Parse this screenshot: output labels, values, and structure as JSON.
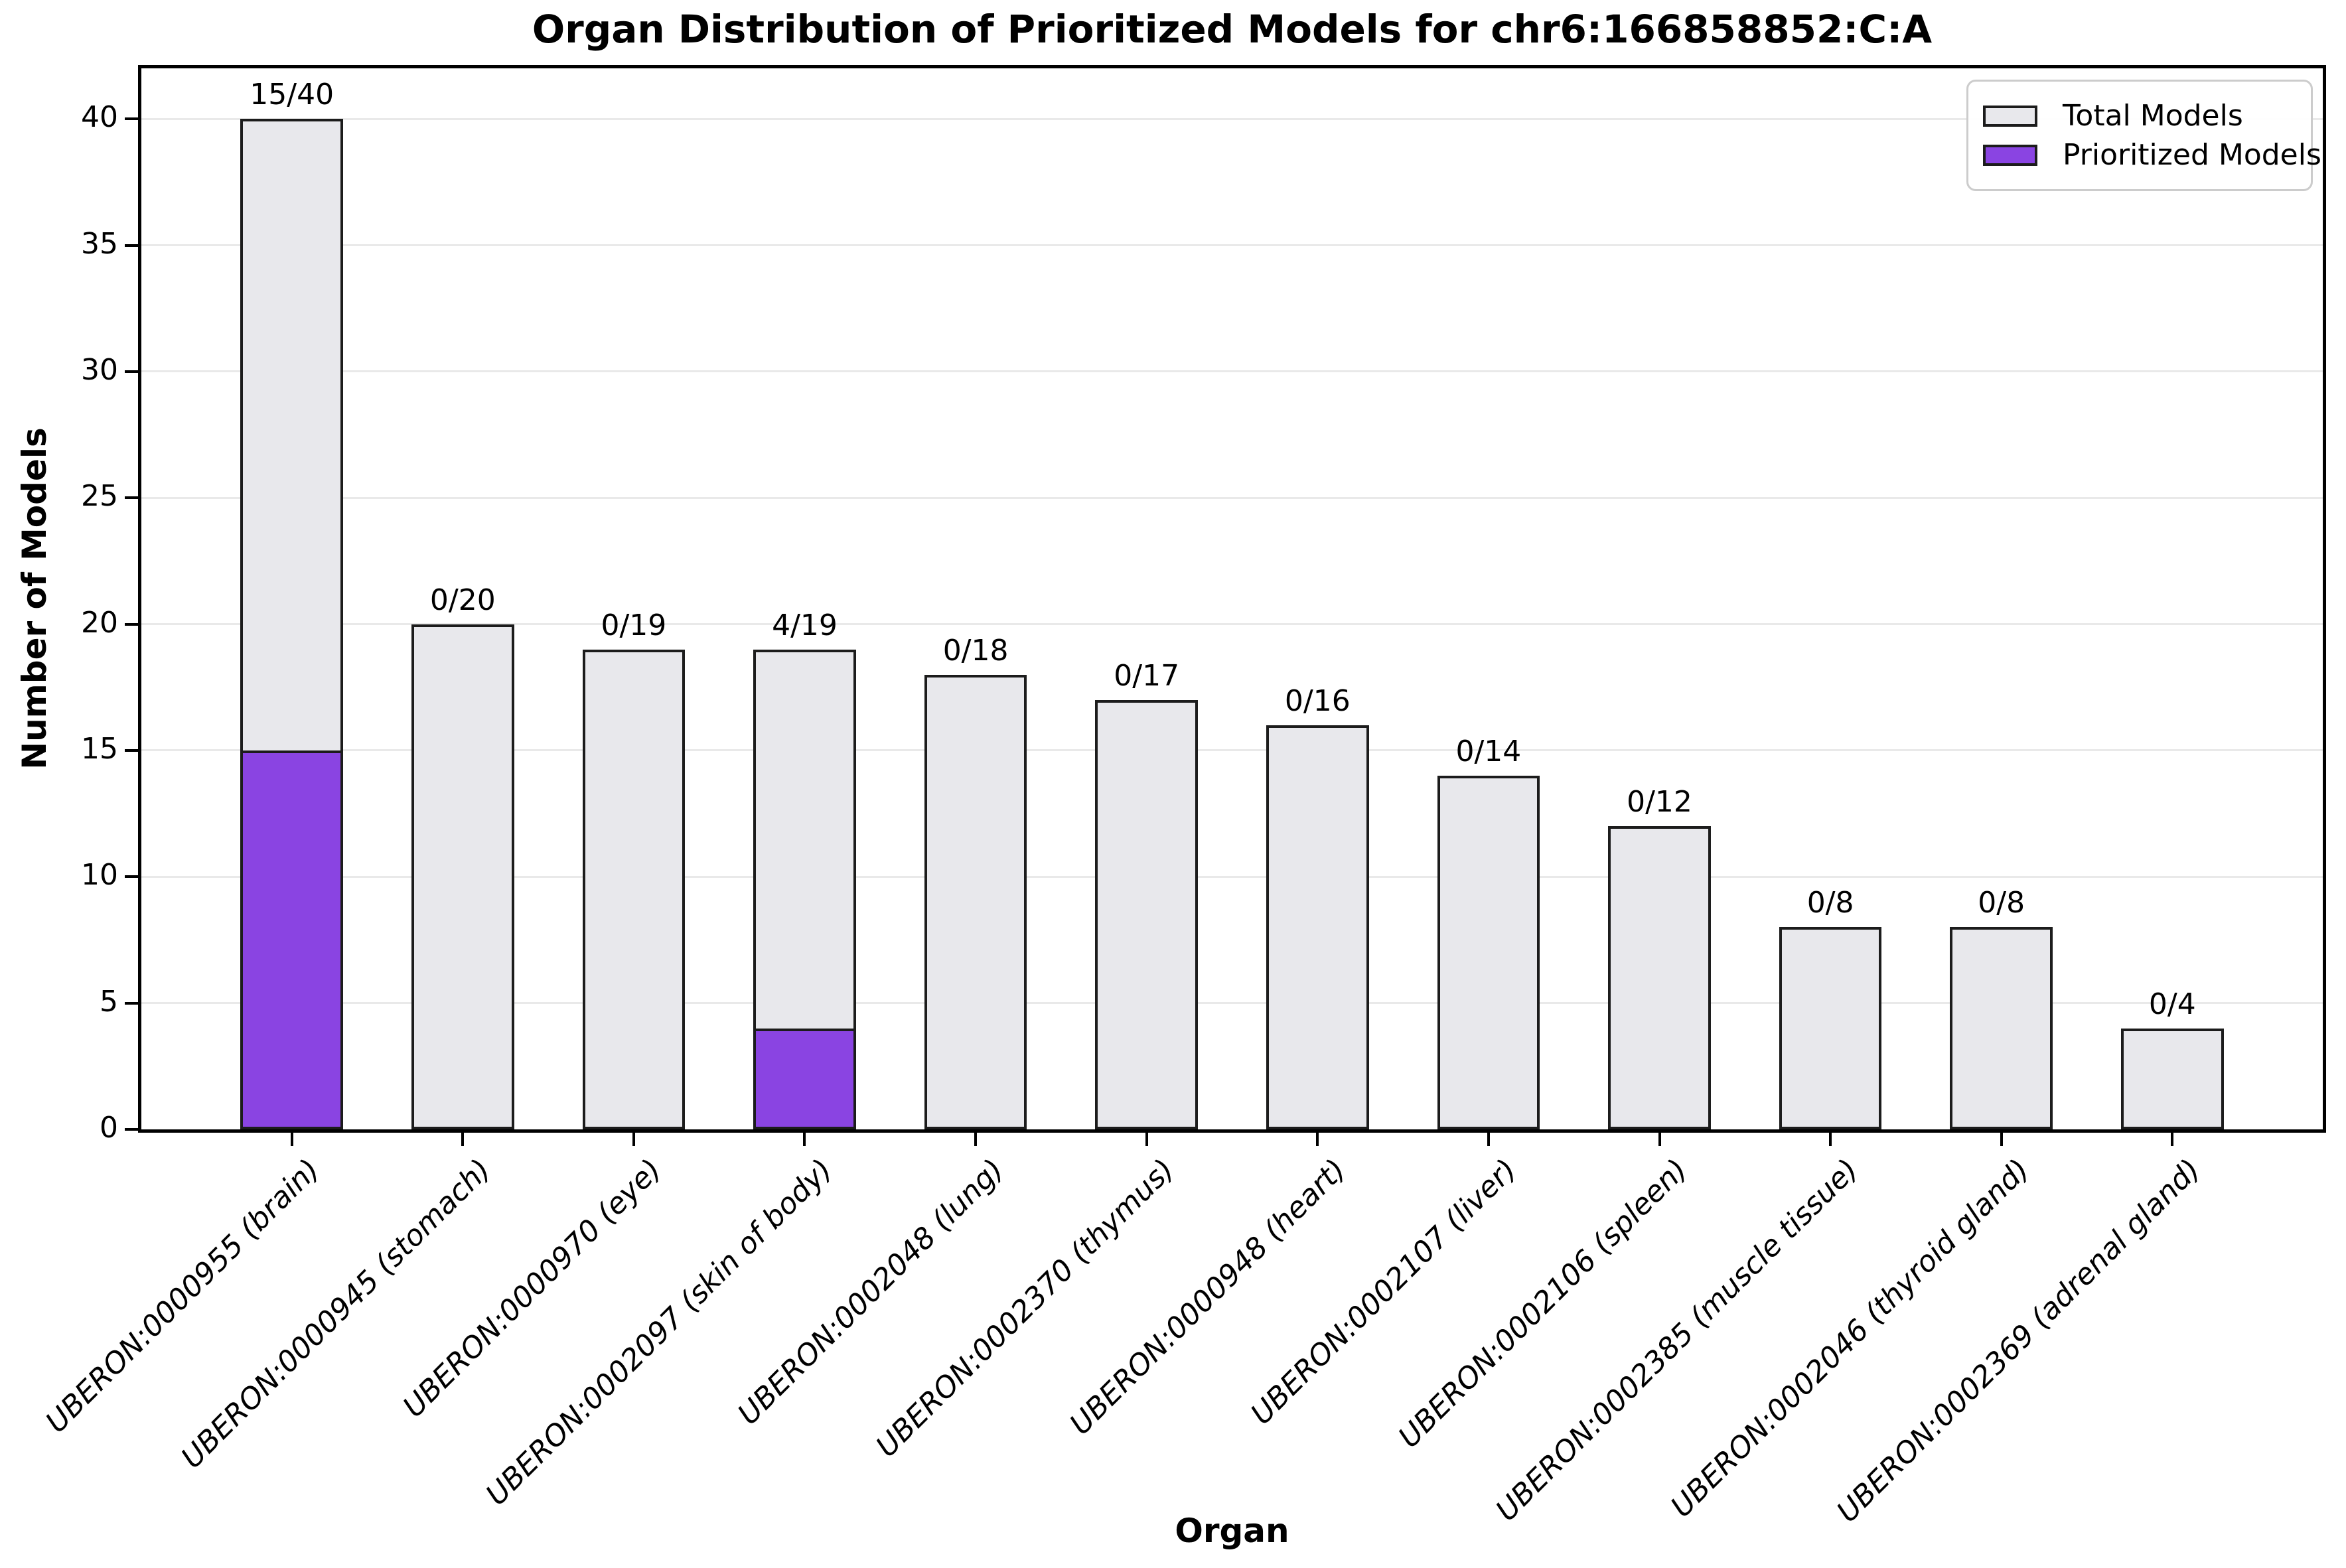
{
  "chart_data": {
    "type": "bar",
    "title": "Organ Distribution of Prioritized Models for chr6:166858852:C:A",
    "xlabel": "Organ",
    "ylabel": "Number of Models",
    "ylim": [
      0,
      42
    ],
    "yticks": [
      0,
      5,
      10,
      15,
      20,
      25,
      30,
      35,
      40
    ],
    "grid": "horizontal",
    "legend_position": "upper right",
    "categories": [
      "UBERON:0000955 (brain)",
      "UBERON:0000945 (stomach)",
      "UBERON:0000970 (eye)",
      "UBERON:0002097 (skin of body)",
      "UBERON:0002048 (lung)",
      "UBERON:0002370 (thymus)",
      "UBERON:0000948 (heart)",
      "UBERON:0002107 (liver)",
      "UBERON:0002106 (spleen)",
      "UBERON:0002385 (muscle tissue)",
      "UBERON:0002046 (thyroid gland)",
      "UBERON:0002369 (adrenal gland)"
    ],
    "series": [
      {
        "name": "Total Models",
        "color": "#e8e8ec",
        "values": [
          40,
          20,
          19,
          19,
          18,
          17,
          16,
          14,
          12,
          8,
          8,
          4
        ]
      },
      {
        "name": "Prioritized Models",
        "color": "#8a44e2",
        "values": [
          15,
          0,
          0,
          4,
          0,
          0,
          0,
          0,
          0,
          0,
          0,
          0
        ]
      }
    ],
    "bar_labels": [
      "15/40",
      "0/20",
      "0/19",
      "4/19",
      "0/18",
      "0/17",
      "0/16",
      "0/14",
      "0/12",
      "0/8",
      "0/8",
      "0/4"
    ],
    "colors": {
      "bar_edge": "#1c1c1c",
      "grid": "#e9e9e9",
      "spine": "#000000",
      "total_fill": "#e8e8ec",
      "prioritized_fill": "#8a44e2"
    }
  }
}
